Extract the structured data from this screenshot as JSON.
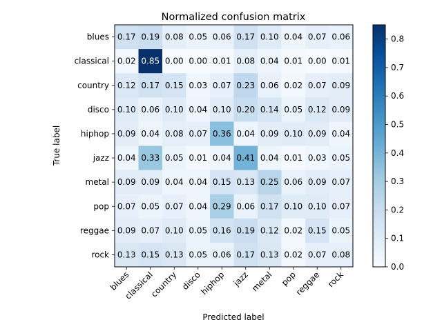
{
  "chart_data": {
    "type": "heatmap",
    "title": "Normalized confusion matrix",
    "xlabel": "Predicted label",
    "ylabel": "True label",
    "x_categories": [
      "blues",
      "classical",
      "country",
      "disco",
      "hiphop",
      "jazz",
      "metal",
      "pop",
      "reggae",
      "rock"
    ],
    "y_categories": [
      "blues",
      "classical",
      "country",
      "disco",
      "hiphop",
      "jazz",
      "metal",
      "pop",
      "reggae",
      "rock"
    ],
    "values": [
      [
        0.17,
        0.19,
        0.08,
        0.05,
        0.06,
        0.17,
        0.1,
        0.04,
        0.07,
        0.06
      ],
      [
        0.02,
        0.85,
        0.0,
        0.0,
        0.01,
        0.08,
        0.04,
        0.01,
        0.0,
        0.01
      ],
      [
        0.12,
        0.17,
        0.15,
        0.03,
        0.07,
        0.23,
        0.06,
        0.02,
        0.07,
        0.09
      ],
      [
        0.1,
        0.06,
        0.1,
        0.04,
        0.1,
        0.2,
        0.14,
        0.05,
        0.12,
        0.09
      ],
      [
        0.09,
        0.04,
        0.08,
        0.07,
        0.36,
        0.04,
        0.09,
        0.1,
        0.09,
        0.04
      ],
      [
        0.04,
        0.33,
        0.05,
        0.01,
        0.04,
        0.41,
        0.04,
        0.01,
        0.03,
        0.05
      ],
      [
        0.09,
        0.09,
        0.04,
        0.04,
        0.15,
        0.13,
        0.25,
        0.06,
        0.09,
        0.07
      ],
      [
        0.07,
        0.05,
        0.07,
        0.04,
        0.29,
        0.06,
        0.17,
        0.1,
        0.1,
        0.07
      ],
      [
        0.09,
        0.07,
        0.1,
        0.05,
        0.16,
        0.19,
        0.12,
        0.02,
        0.15,
        0.05
      ],
      [
        0.13,
        0.15,
        0.13,
        0.05,
        0.06,
        0.17,
        0.13,
        0.02,
        0.07,
        0.08
      ]
    ],
    "colormap": "Blues",
    "color_range": [
      0.0,
      0.85
    ],
    "colorbar_ticks": [
      "0.0",
      "0.1",
      "0.2",
      "0.3",
      "0.4",
      "0.5",
      "0.6",
      "0.7",
      "0.8"
    ],
    "colorbar_tick_values": [
      0.0,
      0.1,
      0.2,
      0.3,
      0.4,
      0.5,
      0.6,
      0.7,
      0.8
    ],
    "x_tick_rotation": 45,
    "grid": false
  }
}
